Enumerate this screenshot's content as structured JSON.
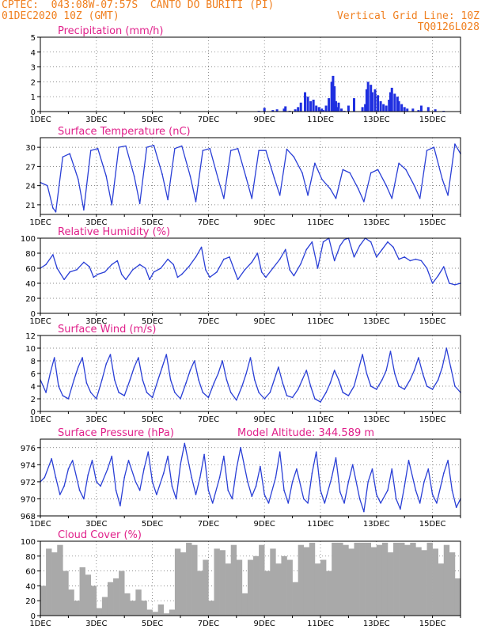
{
  "header": {
    "location": "CPTEC:  043:08W-07:57S  CANTO DO BURITI (PI)",
    "date": "01DEC2020 10Z (GMT)",
    "grid_note": "Vertical Grid Line: 10Z",
    "run_id": "TQ0126L028"
  },
  "colors": {
    "line": "#2a3fd6",
    "bar": "#1f2fe0",
    "cloud": "#a9a9a9",
    "title": "#e0208a",
    "header": "#f08020"
  },
  "x_axis": {
    "day_start": 1,
    "day_end": 16,
    "tick_labels": [
      {
        "day": 1,
        "label": "1DEC"
      },
      {
        "day": 3,
        "label": "3DEC"
      },
      {
        "day": 5,
        "label": "5DEC"
      },
      {
        "day": 7,
        "label": "7DEC"
      },
      {
        "day": 9,
        "label": "9DEC"
      },
      {
        "day": 11,
        "label": "11DEC"
      },
      {
        "day": 13,
        "label": "13DEC"
      },
      {
        "day": 15,
        "label": "15DEC"
      }
    ]
  },
  "chart_data": [
    {
      "id": "precip",
      "type": "bar",
      "title": "Precipitation (mm/h)",
      "extra": "",
      "ylim": [
        0,
        5
      ],
      "yticks": [
        0,
        1,
        2,
        3,
        4,
        5
      ],
      "x": [
        1.2,
        1.6,
        2.0,
        2.5,
        3.0,
        3.5,
        4.0,
        4.5,
        5.0,
        5.5,
        6.0,
        6.5,
        7.0,
        7.5,
        8.0,
        8.5,
        8.8,
        9.0,
        9.3,
        9.45,
        9.7,
        9.75,
        9.9,
        10.1,
        10.2,
        10.3,
        10.45,
        10.55,
        10.65,
        10.75,
        10.85,
        10.95,
        11.05,
        11.1,
        11.2,
        11.3,
        11.4,
        11.45,
        11.5,
        11.55,
        11.6,
        11.65,
        11.75,
        11.85,
        12.0,
        12.2,
        12.5,
        12.6,
        12.65,
        12.7,
        12.8,
        12.85,
        12.95,
        13.05,
        13.15,
        13.25,
        13.35,
        13.45,
        13.5,
        13.55,
        13.65,
        13.75,
        13.8,
        13.9,
        14.0,
        14.1,
        14.3,
        14.5,
        14.6,
        14.85,
        15.1,
        15.4
      ],
      "values": [
        0.02,
        0.02,
        0.03,
        0.02,
        0.02,
        0.02,
        0.02,
        0.02,
        0.02,
        0.02,
        0.02,
        0.02,
        0.02,
        0.02,
        0.02,
        0.02,
        0.05,
        0.25,
        0.1,
        0.15,
        0.2,
        0.35,
        0.05,
        0.15,
        0.3,
        0.6,
        1.3,
        1.0,
        0.7,
        0.8,
        0.4,
        0.3,
        0.2,
        0.1,
        0.4,
        0.9,
        2.0,
        2.4,
        1.7,
        0.7,
        0.3,
        0.6,
        0.2,
        0.05,
        0.4,
        0.9,
        0.3,
        0.5,
        1.5,
        2.0,
        1.8,
        1.3,
        1.5,
        1.1,
        0.7,
        0.5,
        0.4,
        0.8,
        1.3,
        1.6,
        1.2,
        1.0,
        0.7,
        0.5,
        0.3,
        0.2,
        0.2,
        0.1,
        0.4,
        0.3,
        0.15,
        0.05
      ]
    },
    {
      "id": "temp",
      "type": "line",
      "title": "Surface Temperature (nC)",
      "extra": "",
      "ylim": [
        19.5,
        31.5
      ],
      "yticks": [
        21,
        24,
        27,
        30
      ],
      "x": [
        1.0,
        1.25,
        1.45,
        1.55,
        1.8,
        2.05,
        2.35,
        2.55,
        2.8,
        3.05,
        3.35,
        3.55,
        3.8,
        4.05,
        4.35,
        4.55,
        4.8,
        5.05,
        5.35,
        5.55,
        5.8,
        6.05,
        6.35,
        6.55,
        6.8,
        7.05,
        7.35,
        7.55,
        7.8,
        8.05,
        8.35,
        8.55,
        8.8,
        9.05,
        9.35,
        9.55,
        9.8,
        10.05,
        10.35,
        10.55,
        10.8,
        11.05,
        11.35,
        11.55,
        11.8,
        12.05,
        12.35,
        12.55,
        12.8,
        13.05,
        13.35,
        13.55,
        13.8,
        14.05,
        14.35,
        14.55,
        14.8,
        15.05,
        15.35,
        15.55,
        15.8,
        16.0
      ],
      "values": [
        24.5,
        24,
        20.5,
        19.9,
        28.5,
        29,
        25,
        20.2,
        29.5,
        29.8,
        25.5,
        21,
        30,
        30.2,
        25.5,
        21.2,
        30,
        30.3,
        25.8,
        21.8,
        29.8,
        30.2,
        25.5,
        21.5,
        29.5,
        29.8,
        25,
        22,
        29.5,
        29.8,
        25.2,
        22,
        29.5,
        29.5,
        25.2,
        22.5,
        29.7,
        28.5,
        26,
        22.5,
        27.5,
        25,
        23.5,
        22,
        26.5,
        26,
        23.5,
        21.5,
        26,
        26.5,
        24,
        22,
        27.5,
        26.5,
        24,
        22,
        29.5,
        30,
        25,
        22.5,
        30.5,
        29
      ]
    },
    {
      "id": "rh",
      "type": "line",
      "title": "Relative Humidity (%)",
      "extra": "",
      "ylim": [
        0,
        100
      ],
      "yticks": [
        0,
        20,
        40,
        60,
        80,
        100
      ],
      "x": [
        1.0,
        1.2,
        1.45,
        1.6,
        1.85,
        2.05,
        2.3,
        2.55,
        2.75,
        2.9,
        3.05,
        3.3,
        3.55,
        3.75,
        3.9,
        4.05,
        4.3,
        4.55,
        4.75,
        4.9,
        5.05,
        5.3,
        5.55,
        5.75,
        5.9,
        6.05,
        6.3,
        6.55,
        6.75,
        6.9,
        7.05,
        7.3,
        7.55,
        7.75,
        7.9,
        8.05,
        8.3,
        8.55,
        8.75,
        8.9,
        9.05,
        9.3,
        9.55,
        9.75,
        9.9,
        10.05,
        10.3,
        10.5,
        10.7,
        10.9,
        11.1,
        11.3,
        11.5,
        11.7,
        11.85,
        12.0,
        12.2,
        12.4,
        12.6,
        12.8,
        13.0,
        13.2,
        13.4,
        13.6,
        13.8,
        14.0,
        14.2,
        14.4,
        14.6,
        14.8,
        15.0,
        15.2,
        15.4,
        15.6,
        15.8,
        16.0
      ],
      "values": [
        60,
        65,
        78,
        60,
        45,
        55,
        58,
        68,
        62,
        48,
        52,
        55,
        65,
        70,
        52,
        45,
        58,
        65,
        60,
        45,
        55,
        60,
        72,
        65,
        48,
        52,
        62,
        75,
        88,
        58,
        48,
        55,
        72,
        75,
        60,
        45,
        58,
        68,
        80,
        55,
        48,
        60,
        72,
        85,
        58,
        50,
        66,
        85,
        95,
        60,
        95,
        100,
        70,
        90,
        98,
        100,
        75,
        90,
        100,
        95,
        75,
        85,
        95,
        88,
        72,
        75,
        70,
        72,
        70,
        60,
        40,
        50,
        62,
        40,
        38,
        40
      ]
    },
    {
      "id": "wind",
      "type": "line",
      "title": "Surface Wind (m/s)",
      "extra": "",
      "ylim": [
        0,
        12
      ],
      "yticks": [
        0,
        2,
        4,
        6,
        8,
        10,
        12
      ],
      "x": [
        1.0,
        1.2,
        1.35,
        1.5,
        1.65,
        1.8,
        2.0,
        2.2,
        2.35,
        2.5,
        2.65,
        2.8,
        3.0,
        3.2,
        3.35,
        3.5,
        3.65,
        3.8,
        4.0,
        4.2,
        4.35,
        4.5,
        4.65,
        4.8,
        5.0,
        5.2,
        5.35,
        5.5,
        5.65,
        5.8,
        6.0,
        6.2,
        6.35,
        6.5,
        6.65,
        6.8,
        7.0,
        7.2,
        7.35,
        7.5,
        7.65,
        7.8,
        8.0,
        8.2,
        8.35,
        8.5,
        8.65,
        8.8,
        9.0,
        9.2,
        9.35,
        9.5,
        9.65,
        9.8,
        10.0,
        10.2,
        10.35,
        10.5,
        10.65,
        10.8,
        11.0,
        11.2,
        11.35,
        11.5,
        11.65,
        11.8,
        12.0,
        12.2,
        12.35,
        12.5,
        12.65,
        12.8,
        13.0,
        13.2,
        13.35,
        13.5,
        13.65,
        13.8,
        14.0,
        14.2,
        14.35,
        14.5,
        14.65,
        14.8,
        15.0,
        15.2,
        15.35,
        15.5,
        15.65,
        15.8,
        16.0
      ],
      "values": [
        5,
        3,
        6,
        8.5,
        4,
        2.5,
        2,
        5,
        7,
        8.5,
        4.5,
        3,
        2,
        5,
        7.5,
        9,
        5,
        3,
        2.5,
        5,
        7,
        8.5,
        5,
        3,
        2.2,
        5,
        7,
        9,
        5,
        3,
        2,
        4.5,
        6.5,
        8,
        5,
        3,
        2.2,
        4.5,
        6,
        8,
        5,
        3,
        1.8,
        4,
        6,
        8.5,
        5,
        3,
        2,
        3,
        5,
        7,
        4.5,
        2.5,
        2.2,
        3.5,
        5,
        6.5,
        4,
        2,
        1.5,
        3,
        4.5,
        6.5,
        5,
        3,
        2.5,
        4,
        6.5,
        9,
        6,
        4,
        3.5,
        5,
        6.5,
        9.5,
        6,
        4,
        3.5,
        5,
        6.5,
        8.5,
        6,
        4,
        3.5,
        5,
        7,
        10,
        7,
        4,
        3
      ]
    },
    {
      "id": "pres",
      "type": "line",
      "title": "Surface Pressure (hPa)",
      "extra": "Model Altitude: 344.589  m",
      "ylim": [
        968,
        977
      ],
      "yticks": [
        968,
        970,
        972,
        974,
        976
      ],
      "x": [
        1.0,
        1.15,
        1.4,
        1.55,
        1.7,
        1.85,
        2.0,
        2.15,
        2.4,
        2.55,
        2.7,
        2.85,
        3.0,
        3.15,
        3.4,
        3.55,
        3.7,
        3.85,
        4.0,
        4.15,
        4.4,
        4.55,
        4.7,
        4.85,
        5.0,
        5.15,
        5.4,
        5.55,
        5.7,
        5.85,
        6.0,
        6.15,
        6.4,
        6.55,
        6.7,
        6.85,
        7.0,
        7.15,
        7.4,
        7.55,
        7.7,
        7.85,
        8.0,
        8.15,
        8.4,
        8.55,
        8.7,
        8.85,
        9.0,
        9.15,
        9.4,
        9.55,
        9.7,
        9.85,
        10.0,
        10.15,
        10.4,
        10.55,
        10.7,
        10.85,
        11.0,
        11.15,
        11.4,
        11.55,
        11.7,
        11.85,
        12.0,
        12.15,
        12.4,
        12.55,
        12.7,
        12.85,
        13.0,
        13.15,
        13.4,
        13.55,
        13.7,
        13.85,
        14.0,
        14.15,
        14.4,
        14.55,
        14.7,
        14.85,
        15.0,
        15.15,
        15.4,
        15.55,
        15.7,
        15.85,
        16.0
      ],
      "values": [
        972,
        972.5,
        974.7,
        972.5,
        970.5,
        971.5,
        973.5,
        974.5,
        971,
        970,
        972.8,
        974.5,
        972,
        971.5,
        973.5,
        975,
        971,
        969.2,
        972.5,
        974.5,
        972,
        971,
        973.5,
        975.5,
        972,
        970.5,
        973,
        975,
        971.5,
        970,
        974,
        976.5,
        972.5,
        970.5,
        972.5,
        975.2,
        971,
        969.5,
        972.5,
        975,
        971,
        970,
        973.5,
        976,
        972,
        970.3,
        971.5,
        973.8,
        970.5,
        969.5,
        972.5,
        975.5,
        971,
        969.5,
        972,
        973.5,
        970,
        969.5,
        973,
        975.5,
        971,
        969.5,
        972.5,
        974.8,
        970.8,
        969.5,
        972,
        974,
        970,
        968.5,
        972,
        973.5,
        970.5,
        969.5,
        971,
        973.5,
        970,
        968.8,
        971.5,
        974.5,
        971,
        969.5,
        972,
        973.5,
        970.5,
        969.5,
        973,
        974.5,
        971,
        969,
        970
      ]
    },
    {
      "id": "cloud",
      "type": "area",
      "title": "Cloud Cover (%)",
      "extra": "",
      "ylim": [
        0,
        100
      ],
      "yticks": [
        0,
        20,
        40,
        60,
        80,
        100
      ],
      "x": [
        1.0,
        1.2,
        1.4,
        1.6,
        1.8,
        2.0,
        2.2,
        2.4,
        2.6,
        2.8,
        3.0,
        3.2,
        3.4,
        3.6,
        3.8,
        4.0,
        4.2,
        4.4,
        4.6,
        4.8,
        5.0,
        5.2,
        5.4,
        5.6,
        5.8,
        6.0,
        6.2,
        6.4,
        6.6,
        6.8,
        7.0,
        7.2,
        7.4,
        7.6,
        7.8,
        8.0,
        8.2,
        8.4,
        8.6,
        8.8,
        9.0,
        9.2,
        9.4,
        9.6,
        9.8,
        10.0,
        10.2,
        10.4,
        10.6,
        10.8,
        11.0,
        11.2,
        11.4,
        11.6,
        11.8,
        12.0,
        12.2,
        12.4,
        12.6,
        12.8,
        13.0,
        13.2,
        13.4,
        13.6,
        13.8,
        14.0,
        14.2,
        14.4,
        14.6,
        14.8,
        15.0,
        15.2,
        15.4,
        15.6,
        15.8,
        16.0
      ],
      "values": [
        40,
        90,
        85,
        95,
        60,
        35,
        20,
        65,
        55,
        40,
        10,
        25,
        45,
        50,
        60,
        30,
        20,
        35,
        20,
        8,
        5,
        15,
        3,
        8,
        90,
        85,
        98,
        95,
        60,
        75,
        20,
        90,
        88,
        70,
        95,
        75,
        30,
        75,
        80,
        95,
        60,
        90,
        70,
        80,
        75,
        45,
        95,
        92,
        98,
        70,
        75,
        60,
        98,
        98,
        95,
        90,
        98,
        98,
        98,
        92,
        95,
        98,
        85,
        98,
        98,
        95,
        98,
        92,
        88,
        98,
        90,
        70,
        95,
        85,
        50,
        30
      ]
    }
  ]
}
